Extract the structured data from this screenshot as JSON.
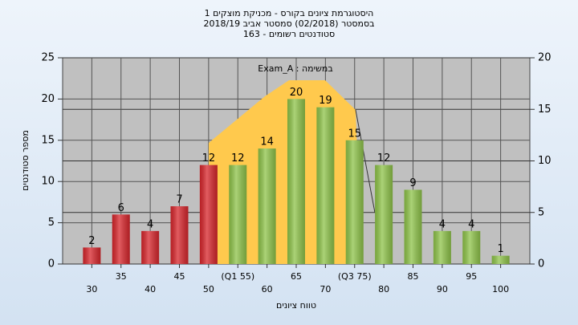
{
  "chart_data": {
    "type": "bar",
    "title_lines": [
      "היסטוגרמת ציונים בקורס - מכניקת מוצקים 1",
      "בסמסטר  (02/2018)  סמסטר אביב 2018/19",
      "סטודנטים רשומים - 163"
    ],
    "annotation": "במשימה : Exam_A",
    "y_label": "מספר סטודנטים",
    "x_label": "טווח ציונים",
    "categories": [
      "30",
      "35",
      "40",
      "45",
      "50",
      "(Q1 55)",
      "60",
      "65",
      "70",
      "(Q3 75)",
      "80",
      "85",
      "90",
      "95",
      "100"
    ],
    "values": [
      2,
      6,
      4,
      7,
      12,
      12,
      14,
      20,
      19,
      15,
      12,
      9,
      4,
      4,
      1
    ],
    "colors": [
      "#d8262c",
      "#d8262c",
      "#d8262c",
      "#d8262c",
      "#d8262c",
      "#8fc44a",
      "#8fc44a",
      "#8fc44a",
      "#8fc44a",
      "#8fc44a",
      "#8fc44a",
      "#8fc44a",
      "#8fc44a",
      "#8fc44a",
      "#8fc44a"
    ],
    "ylim": [
      0,
      25
    ],
    "yticks": [
      0,
      5,
      10,
      15,
      20,
      25
    ],
    "y2lim": [
      0,
      20
    ],
    "y2ticks": [
      0,
      5,
      10,
      15,
      20
    ],
    "grid": true
  }
}
